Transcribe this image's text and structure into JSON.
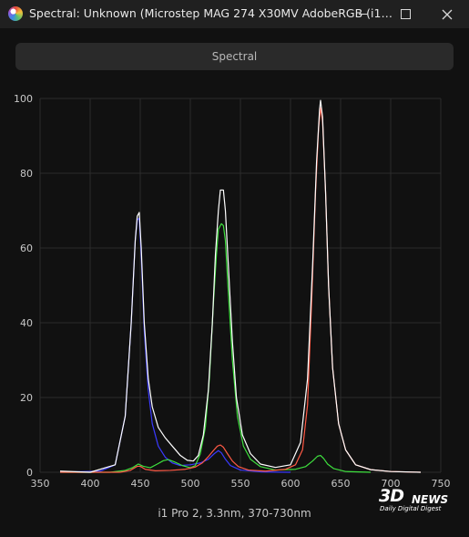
{
  "window": {
    "title": "Spectral: Unknown (Microstep MAG 274 X30MV AdobeRGB (i1…",
    "minimize_icon": "minimize-icon",
    "maximize_icon": "maximize-icon",
    "close_icon": "close-icon"
  },
  "toolbar": {
    "spectral_label": "Spectral"
  },
  "footer": {
    "caption": "i1 Pro 2, 3.3nm, 370-730nm"
  },
  "watermark": {
    "brand": "3D",
    "news": "NEWS",
    "tagline": "Daily Digital Digest"
  },
  "colors": {
    "background": "#111111",
    "grid": "#2c2c2c",
    "white": "#ffffff",
    "red": "#ff5a46",
    "green": "#3ee03e",
    "blue": "#3a3aff"
  },
  "chart_data": {
    "type": "line",
    "xlim": [
      350,
      750
    ],
    "ylim": [
      0,
      100
    ],
    "x_ticks": [
      350,
      400,
      450,
      500,
      550,
      600,
      650,
      700,
      750
    ],
    "y_ticks": [
      0,
      20,
      40,
      60,
      80,
      100
    ],
    "grid": true,
    "title": "",
    "xlabel": "",
    "ylabel": "",
    "series": [
      {
        "color": "#ffffff",
        "points": [
          [
            370,
            0.3
          ],
          [
            400,
            0
          ],
          [
            425,
            2
          ],
          [
            435,
            15
          ],
          [
            441,
            40
          ],
          [
            445,
            62
          ],
          [
            447,
            68.5
          ],
          [
            449,
            69.5
          ],
          [
            451,
            60
          ],
          [
            454,
            40
          ],
          [
            458,
            25
          ],
          [
            462,
            17.5
          ],
          [
            468,
            12
          ],
          [
            475,
            9.2
          ],
          [
            482,
            7
          ],
          [
            490,
            4.5
          ],
          [
            497,
            3.2
          ],
          [
            503,
            3
          ],
          [
            508,
            4.5
          ],
          [
            513,
            10
          ],
          [
            518,
            22
          ],
          [
            522,
            40
          ],
          [
            525,
            58
          ],
          [
            528,
            70
          ],
          [
            530,
            75.5
          ],
          [
            533,
            75.5
          ],
          [
            535,
            70
          ],
          [
            538,
            55
          ],
          [
            542,
            35
          ],
          [
            546,
            20
          ],
          [
            552,
            10
          ],
          [
            560,
            5
          ],
          [
            570,
            2.2
          ],
          [
            585,
            1.3
          ],
          [
            600,
            2
          ],
          [
            610,
            8
          ],
          [
            617,
            25
          ],
          [
            622,
            55
          ],
          [
            626,
            83
          ],
          [
            629,
            97
          ],
          [
            630,
            99.5
          ],
          [
            632,
            95
          ],
          [
            635,
            75
          ],
          [
            638,
            50
          ],
          [
            642,
            28
          ],
          [
            648,
            13
          ],
          [
            655,
            6
          ],
          [
            665,
            2
          ],
          [
            680,
            0.7
          ],
          [
            700,
            0.2
          ],
          [
            730,
            0
          ]
        ]
      },
      {
        "color": "#3a3aff",
        "points": [
          [
            370,
            0
          ],
          [
            410,
            0.3
          ],
          [
            425,
            2
          ],
          [
            435,
            15
          ],
          [
            441,
            40
          ],
          [
            445,
            62
          ],
          [
            447,
            67.5
          ],
          [
            449,
            68
          ],
          [
            451,
            58
          ],
          [
            454,
            38
          ],
          [
            458,
            22
          ],
          [
            462,
            13
          ],
          [
            468,
            7
          ],
          [
            475,
            4
          ],
          [
            482,
            2.5
          ],
          [
            490,
            1.8
          ],
          [
            500,
            2
          ],
          [
            510,
            2.5
          ],
          [
            518,
            3.5
          ],
          [
            524,
            5
          ],
          [
            528,
            5.8
          ],
          [
            531,
            5.2
          ],
          [
            535,
            3.5
          ],
          [
            540,
            1.8
          ],
          [
            550,
            0.6
          ],
          [
            570,
            0.1
          ],
          [
            600,
            0
          ]
        ]
      },
      {
        "color": "#3ee03e",
        "points": [
          [
            370,
            0
          ],
          [
            420,
            0
          ],
          [
            435,
            0.5
          ],
          [
            442,
            1.2
          ],
          [
            448,
            2.2
          ],
          [
            453,
            1.6
          ],
          [
            460,
            1.2
          ],
          [
            467,
            2.2
          ],
          [
            473,
            3.1
          ],
          [
            478,
            3.4
          ],
          [
            484,
            2.8
          ],
          [
            492,
            1.8
          ],
          [
            500,
            1.2
          ],
          [
            505,
            1.8
          ],
          [
            510,
            5
          ],
          [
            515,
            12
          ],
          [
            519,
            25
          ],
          [
            523,
            45
          ],
          [
            526,
            58
          ],
          [
            528,
            65
          ],
          [
            531,
            66.5
          ],
          [
            533,
            66
          ],
          [
            535,
            62
          ],
          [
            538,
            48
          ],
          [
            542,
            30
          ],
          [
            547,
            15
          ],
          [
            553,
            7
          ],
          [
            560,
            3.5
          ],
          [
            570,
            1.5
          ],
          [
            585,
            0.6
          ],
          [
            605,
            0.8
          ],
          [
            615,
            1.5
          ],
          [
            622,
            3
          ],
          [
            627,
            4.3
          ],
          [
            630,
            4.5
          ],
          [
            633,
            3.7
          ],
          [
            637,
            2.2
          ],
          [
            643,
            1
          ],
          [
            655,
            0.2
          ],
          [
            680,
            0
          ]
        ]
      },
      {
        "color": "#ff5a46",
        "points": [
          [
            370,
            0
          ],
          [
            430,
            0
          ],
          [
            440,
            0.5
          ],
          [
            447,
            1.6
          ],
          [
            450,
            1.6
          ],
          [
            455,
            0.8
          ],
          [
            465,
            0.4
          ],
          [
            480,
            0.5
          ],
          [
            495,
            0.8
          ],
          [
            505,
            1.4
          ],
          [
            512,
            2.5
          ],
          [
            518,
            4.2
          ],
          [
            523,
            5.8
          ],
          [
            527,
            7
          ],
          [
            530,
            7.3
          ],
          [
            533,
            6.7
          ],
          [
            537,
            5
          ],
          [
            542,
            3
          ],
          [
            548,
            1.5
          ],
          [
            558,
            0.6
          ],
          [
            575,
            0.3
          ],
          [
            595,
            0.8
          ],
          [
            605,
            2
          ],
          [
            612,
            6
          ],
          [
            617,
            18
          ],
          [
            621,
            45
          ],
          [
            625,
            75
          ],
          [
            628,
            92
          ],
          [
            630,
            97.5
          ],
          [
            632,
            94
          ],
          [
            635,
            75
          ],
          [
            638,
            50
          ],
          [
            642,
            28
          ],
          [
            648,
            13
          ],
          [
            655,
            6
          ],
          [
            665,
            2
          ],
          [
            680,
            0.7
          ],
          [
            700,
            0.2
          ],
          [
            730,
            0
          ]
        ]
      }
    ]
  }
}
